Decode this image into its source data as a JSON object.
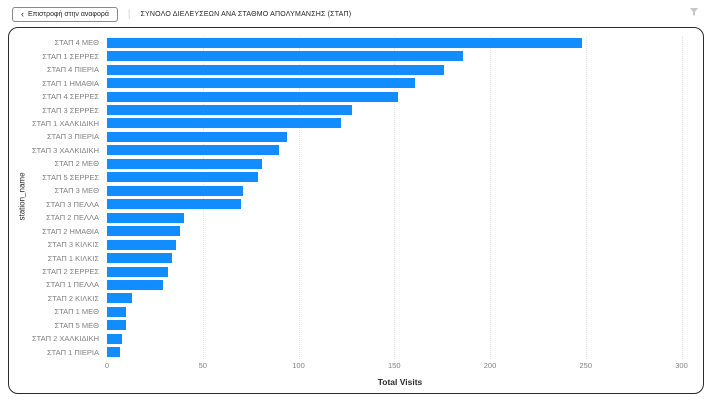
{
  "header": {
    "back_chevron": "‹",
    "back_label": "Επιστροφή στην αναφορά",
    "separator": "|",
    "title": "ΣΥΝΟΛΟ ΔΙΕΛΕΥΣΕΩΝ ΑΝΑ ΣΤΑΘΜΟ ΑΠΟΛΥΜΑΝΣΗΣ (ΣΤΑΠ)",
    "filter_icon": "filter-funnel-icon"
  },
  "colors": {
    "bar": "#118DFF",
    "card_border": "#2b2b2b",
    "category_label": "#808080",
    "tick_label": "#808080",
    "gridline": "#e2e2e2"
  },
  "chart_data": {
    "type": "bar",
    "orientation": "horizontal",
    "title": "ΣΥΝΟΛΟ ΔΙΕΛΕΥΣΕΩΝ ΑΝΑ ΣΤΑΘΜΟ ΑΠΟΛΥΜΑΝΣΗΣ (ΣΤΑΠ)",
    "xlabel": "Total Visits",
    "ylabel": "station_name",
    "xlim": [
      0,
      300
    ],
    "xticks": [
      0,
      50,
      100,
      150,
      200,
      250,
      300
    ],
    "grid": true,
    "legend": false,
    "categories": [
      "ΣΤΑΠ 4 ΜΕΘ",
      "ΣΤΑΠ 1 ΣΕΡΡΕΣ",
      "ΣΤΑΠ 4 ΠΙΕΡΙΑ",
      "ΣΤΑΠ 1 ΗΜΑΘΙΑ",
      "ΣΤΑΠ 4 ΣΕΡΡΕΣ",
      "ΣΤΑΠ 3 ΣΕΡΡΕΣ",
      "ΣΤΑΠ 1 ΧΑΛΚΙΔΙΚΗ",
      "ΣΤΑΠ 3 ΠΙΕΡΙΑ",
      "ΣΤΑΠ 3 ΧΑΛΚΙΔΙΚΗ",
      "ΣΤΑΠ 2 ΜΕΘ",
      "ΣΤΑΠ 5 ΣΕΡΡΕΣ",
      "ΣΤΑΠ 3 ΜΕΘ",
      "ΣΤΑΠ 3 ΠΕΛΛΑ",
      "ΣΤΑΠ 2 ΠΕΛΛΑ",
      "ΣΤΑΠ 2 ΗΜΑΘΙΑ",
      "ΣΤΑΠ 3 ΚΙΛΚΙΣ",
      "ΣΤΑΠ 1 ΚΙΛΚΙΣ",
      "ΣΤΑΠ 2 ΣΕΡΡΕΣ",
      "ΣΤΑΠ 1 ΠΕΛΛΑ",
      "ΣΤΑΠ 2 ΚΙΛΚΙΣ",
      "ΣΤΑΠ 1 ΜΕΘ",
      "ΣΤΑΠ 5 ΜΕΘ",
      "ΣΤΑΠ 2 ΧΑΛΚΙΔΙΚΗ",
      "ΣΤΑΠ 1 ΠΙΕΡΙΑ"
    ],
    "values": [
      248,
      186,
      176,
      161,
      152,
      128,
      122,
      94,
      90,
      81,
      79,
      71,
      70,
      40,
      38,
      36,
      34,
      32,
      29,
      13,
      10,
      10,
      8,
      7
    ]
  }
}
